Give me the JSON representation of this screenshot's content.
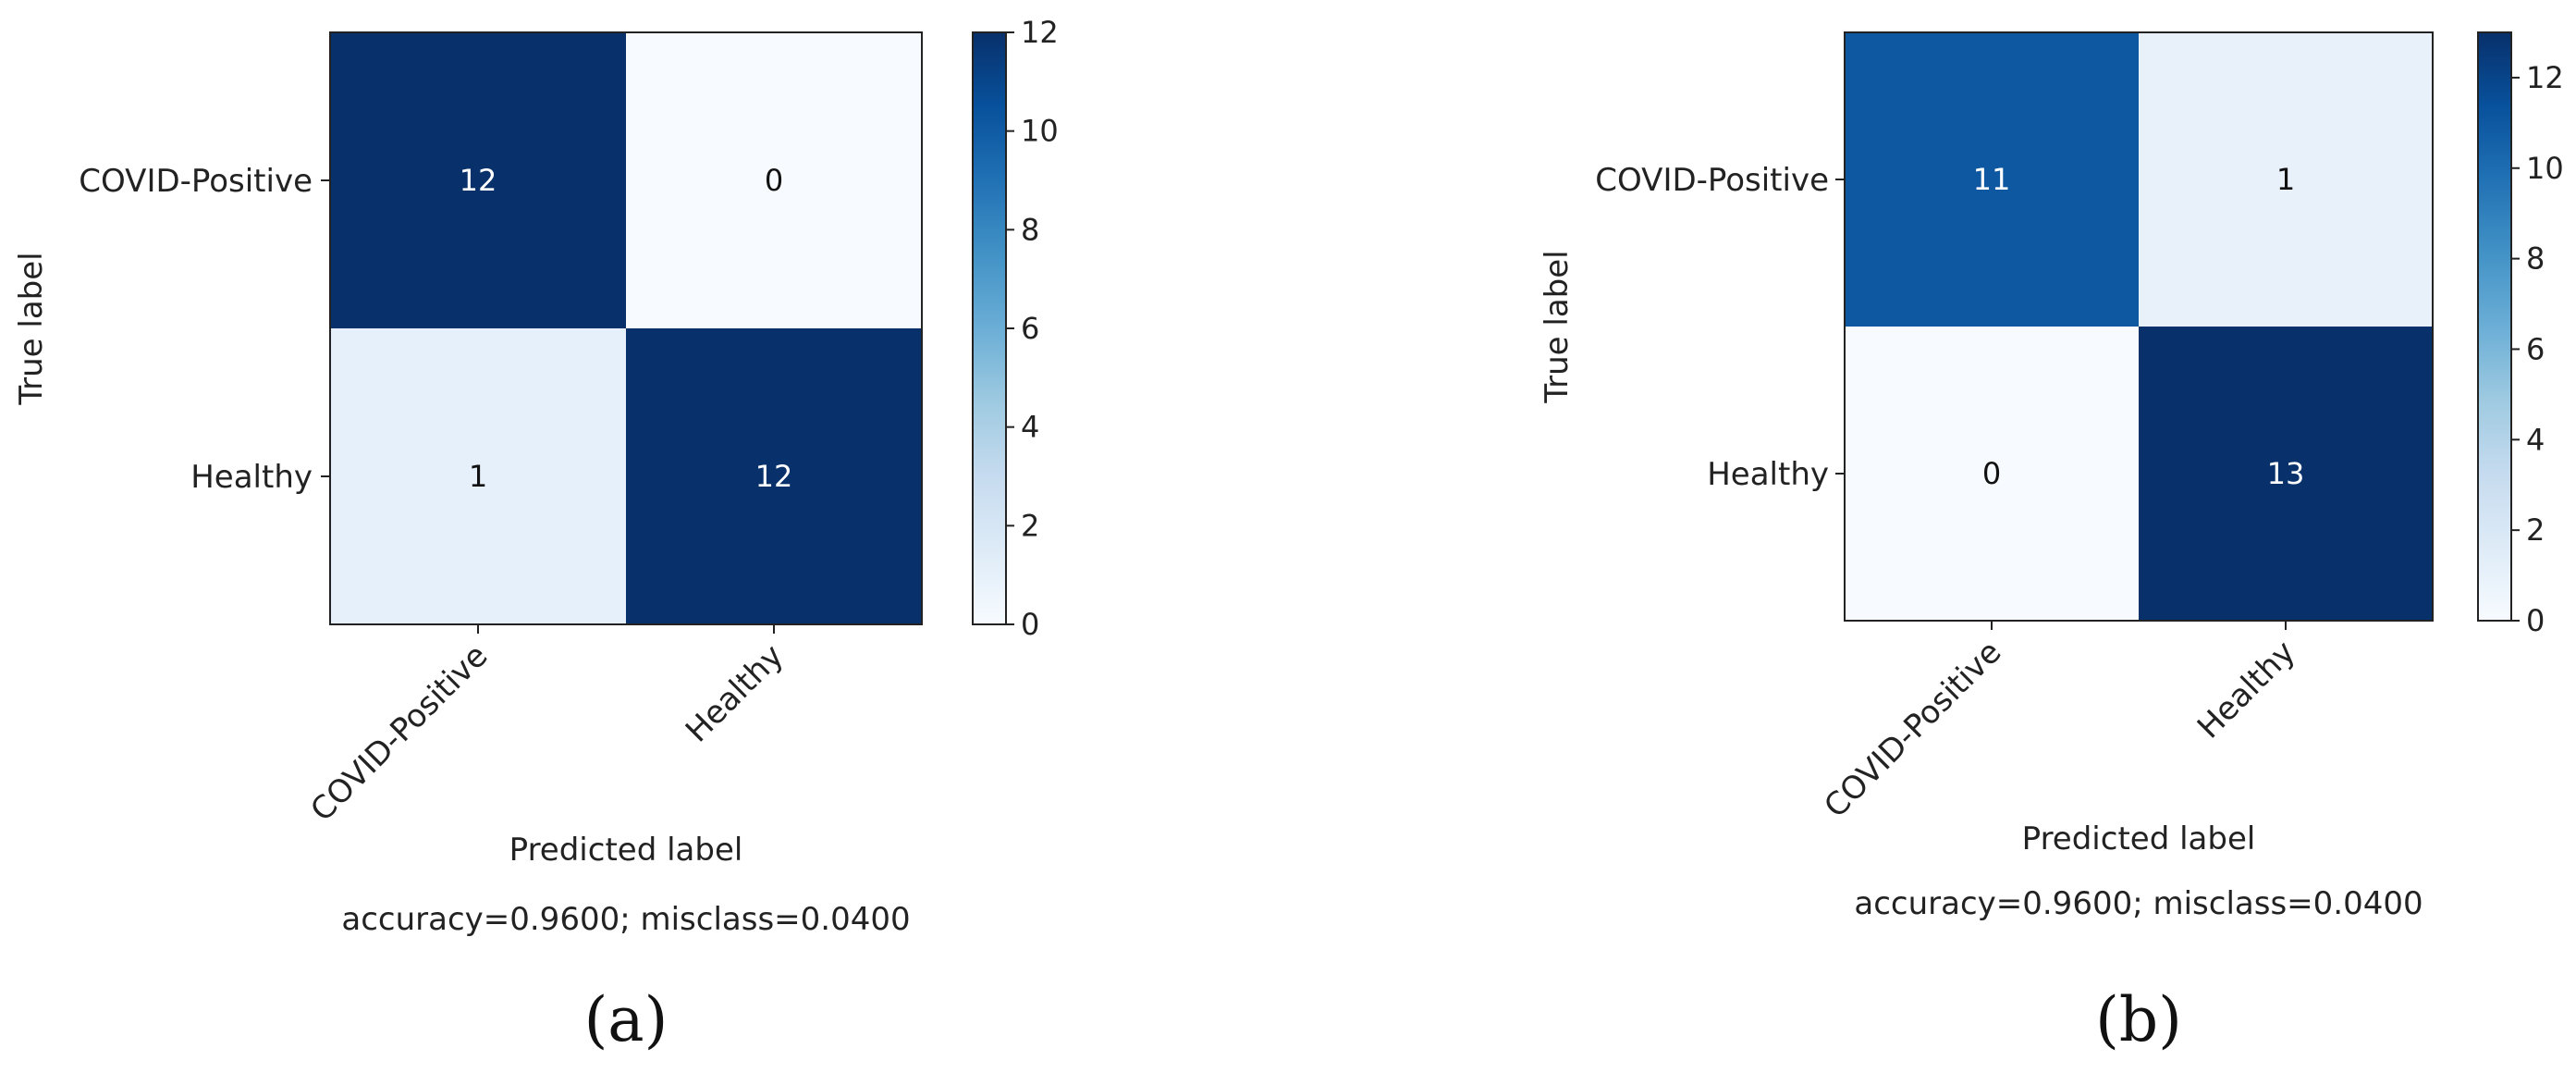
{
  "chart_data": [
    {
      "type": "heatmap",
      "panel_label": "(a)",
      "title": "",
      "xlabel": "Predicted label",
      "ylabel": "True label",
      "x_categories": [
        "COVID-Positive",
        "Healthy"
      ],
      "y_categories": [
        "COVID-Positive",
        "Healthy"
      ],
      "matrix": [
        [
          12,
          0
        ],
        [
          1,
          12
        ]
      ],
      "colormap": "Blues",
      "colorbar": {
        "min": 0,
        "max": 12,
        "ticks": [
          0,
          2,
          4,
          6,
          8,
          10,
          12
        ]
      },
      "caption": "accuracy=0.9600; misclass=0.0400"
    },
    {
      "type": "heatmap",
      "panel_label": "(b)",
      "title": "",
      "xlabel": "Predicted label",
      "ylabel": "True label",
      "x_categories": [
        "COVID-Positive",
        "Healthy"
      ],
      "y_categories": [
        "COVID-Positive",
        "Healthy"
      ],
      "matrix": [
        [
          11,
          1
        ],
        [
          0,
          13
        ]
      ],
      "colormap": "Blues",
      "colorbar": {
        "min": 0,
        "max": 13,
        "ticks": [
          0,
          2,
          4,
          6,
          8,
          10,
          12
        ]
      },
      "caption": "accuracy=0.9600; misclass=0.0400"
    }
  ],
  "colors": {
    "blues_light": "#f7fbff",
    "blues_dark": "#08306b",
    "axis": "#222222",
    "text_on_dark": "#ffffff",
    "text_on_light": "#111111"
  }
}
